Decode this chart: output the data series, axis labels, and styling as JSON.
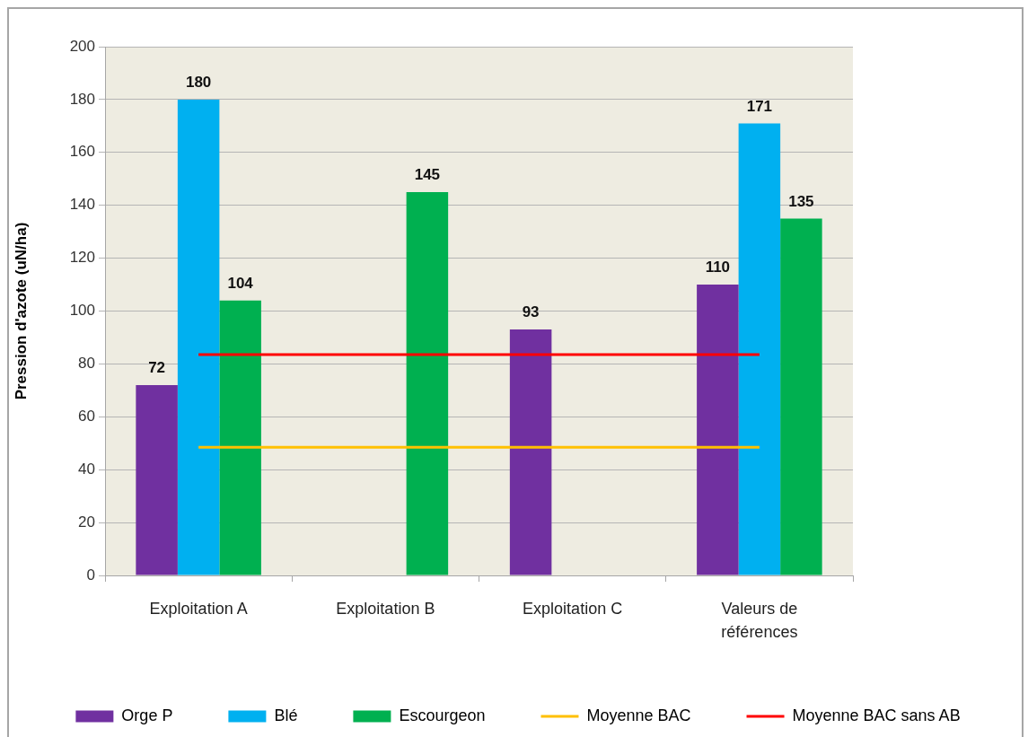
{
  "chart_data": {
    "type": "bar",
    "ylabel": "Pression d'azote (uN/ha)",
    "categories": [
      "Exploitation A",
      "Exploitation B",
      "Exploitation C",
      "Valeurs de références"
    ],
    "series": [
      {
        "name": "Orge P",
        "color": "#7030a0",
        "values": [
          72,
          null,
          93,
          110
        ],
        "value_labels": [
          "72",
          null,
          "93",
          "110"
        ]
      },
      {
        "name": "Blé",
        "color": "#00b0f0",
        "values": [
          180,
          null,
          null,
          171
        ],
        "value_labels": [
          "180",
          null,
          null,
          "171"
        ]
      },
      {
        "name": "Escourgeon",
        "color": "#00b050",
        "values": [
          104,
          145,
          null,
          135
        ],
        "value_labels": [
          "104",
          "145",
          null,
          "135"
        ]
      },
      {
        "name": "Moyenne BAC",
        "type": "line",
        "color": "#ffc000",
        "values": [
          48.5,
          48.5,
          48.5,
          48.5
        ]
      },
      {
        "name": "Moyenne BAC sans AB",
        "type": "line",
        "color": "#ff0000",
        "values": [
          83.5,
          83.5,
          83.5,
          83.5
        ]
      }
    ],
    "ylim": [
      0,
      200
    ],
    "yticks": [
      0,
      20,
      40,
      60,
      80,
      100,
      120,
      140,
      160,
      180,
      200
    ],
    "grid": "y",
    "legend": "bottom",
    "marker": "none"
  }
}
